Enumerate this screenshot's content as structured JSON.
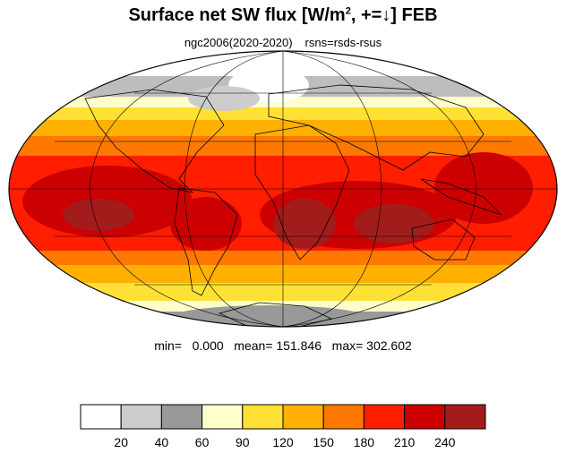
{
  "title": {
    "prefix": "Surface net SW flux [W/m",
    "sup": "2",
    "suffix": ", +=↓]  FEB"
  },
  "subtitle": {
    "left": "ngc2006(2020-2020)",
    "right": "rsns=rsds-rsus"
  },
  "stats": "min=   0.000   mean= 151.846   max= 302.602",
  "colorbar": {
    "colors": [
      "#ffffff",
      "#cccccc",
      "#999999",
      "#ffffcc",
      "#ffe135",
      "#ffb000",
      "#ff7800",
      "#ff1e00",
      "#cc0000",
      "#a31c1c"
    ],
    "labels": [
      "20",
      "40",
      "60",
      "90",
      "120",
      "150",
      "180",
      "210",
      "240"
    ]
  }
}
